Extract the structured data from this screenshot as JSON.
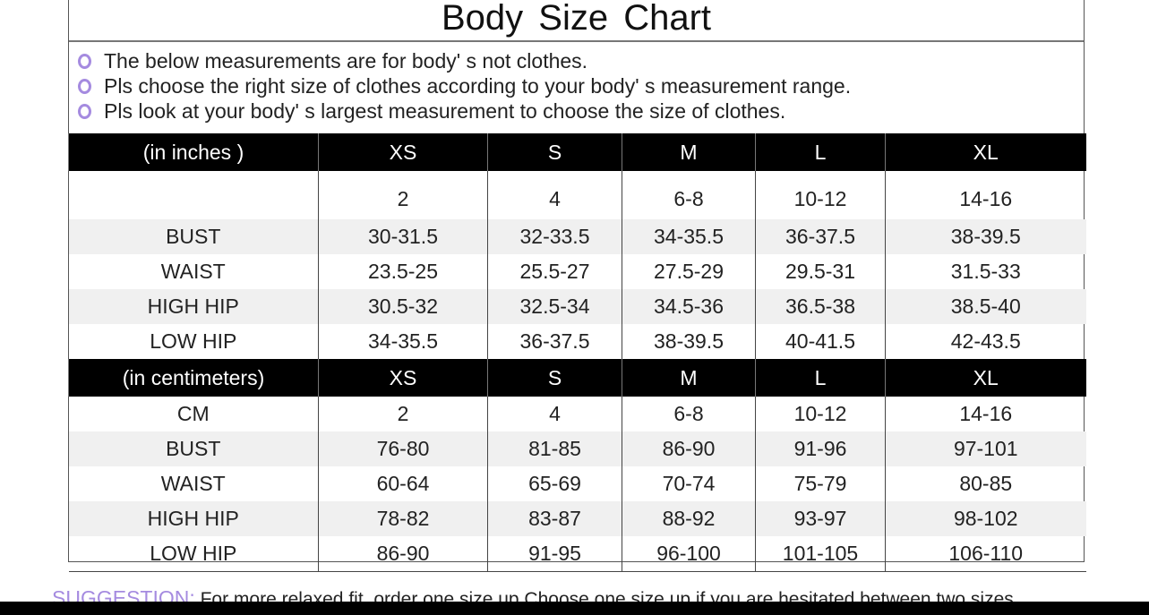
{
  "title": "Body Size Chart",
  "notes": [
    "The below measurements are for  body' s not clothes.",
    "Pls choose the right size of clothes according to your body' s  measurement range.",
    "Pls look  at your body' s  largest measurement to choose the size of clothes."
  ],
  "accent_color": "#a58be0",
  "sizes": [
    "XS",
    "S",
    "M",
    "L",
    "XL"
  ],
  "inches": {
    "header": "(in  inches )",
    "rows": [
      {
        "label": "",
        "values": [
          "2",
          "4",
          "6-8",
          "10-12",
          "14-16"
        ]
      },
      {
        "label": "BUST",
        "values": [
          "30-31.5",
          "32-33.5",
          "34-35.5",
          "36-37.5",
          "38-39.5"
        ]
      },
      {
        "label": "WAIST",
        "values": [
          "23.5-25",
          "25.5-27",
          "27.5-29",
          "29.5-31",
          "31.5-33"
        ]
      },
      {
        "label": "HIGH HIP",
        "values": [
          "30.5-32",
          "32.5-34",
          "34.5-36",
          "36.5-38",
          "38.5-40"
        ]
      },
      {
        "label": "LOW HIP",
        "values": [
          "34-35.5",
          "36-37.5",
          "38-39.5",
          "40-41.5",
          "42-43.5"
        ]
      }
    ]
  },
  "centimeters": {
    "header": "(in centimeters)",
    "rows": [
      {
        "label": "CM",
        "values": [
          "2",
          "4",
          "6-8",
          "10-12",
          "14-16"
        ]
      },
      {
        "label": "BUST",
        "values": [
          "76-80",
          "81-85",
          "86-90",
          "91-96",
          "97-101"
        ]
      },
      {
        "label": "WAIST",
        "values": [
          "60-64",
          "65-69",
          "70-74",
          "75-79",
          "80-85"
        ]
      },
      {
        "label": "HIGH HIP",
        "values": [
          "78-82",
          "83-87",
          "88-92",
          "93-97",
          "98-102"
        ]
      },
      {
        "label": "LOW HIP",
        "values": [
          "86-90",
          "91-95",
          "96-100",
          "101-105",
          "106-110"
        ]
      }
    ]
  },
  "suggestion": {
    "label": "SUGGESTION:",
    "text": "For more relaxed fit, order one size up.Choose one size up if you are hesitated between two sizes."
  }
}
